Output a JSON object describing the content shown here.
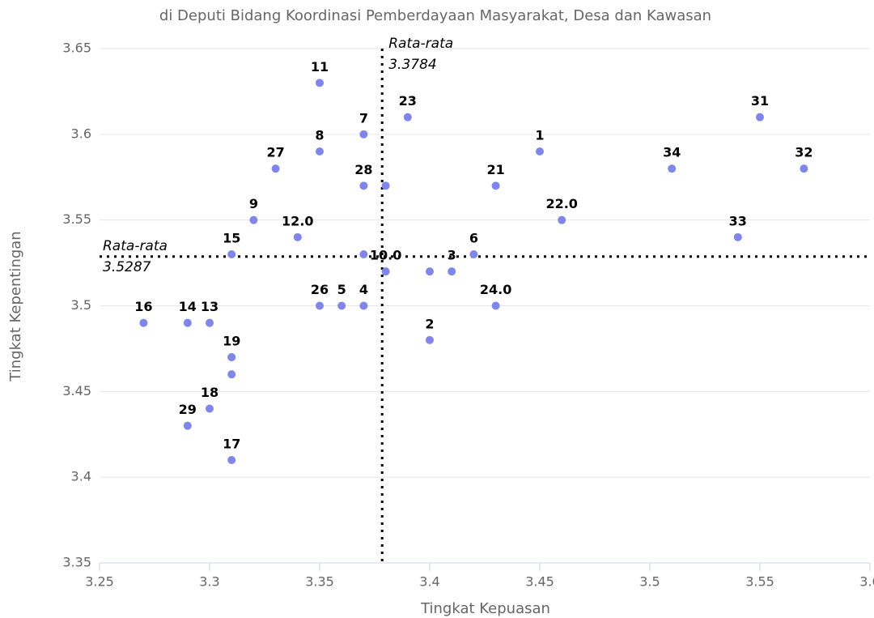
{
  "chart_data": {
    "type": "scatter",
    "title": "di Deputi Bidang Koordinasi Pemberdayaan Masyarakat, Desa dan Kawasan",
    "x_label": "Tingkat Kepuasan",
    "y_label": "Tingkat Kepentingan",
    "color": "#8085e9",
    "grid": true,
    "xlim": [
      3.25,
      3.6
    ],
    "ylim": [
      3.35,
      3.65
    ],
    "xticks": [
      3.25,
      3.3,
      3.35,
      3.4,
      3.45,
      3.5,
      3.55,
      3.6
    ],
    "yticks": [
      3.35,
      3.4,
      3.45,
      3.5,
      3.55,
      3.6,
      3.65
    ],
    "mean_x": {
      "label": "Rata-rata",
      "value": 3.3784
    },
    "mean_y": {
      "label": "Rata-rata",
      "value": 3.5287
    },
    "x": [
      3.35,
      3.37,
      3.39,
      3.35,
      3.33,
      3.37,
      3.38,
      3.45,
      3.43,
      3.46,
      3.51,
      3.55,
      3.57,
      3.54,
      3.32,
      3.34,
      3.31,
      3.37,
      3.38,
      3.41,
      3.4,
      3.42,
      3.43,
      3.4,
      3.35,
      3.36,
      3.37,
      3.27,
      3.29,
      3.3,
      3.31,
      3.31,
      3.31,
      3.3,
      3.29,
      3.31
    ],
    "values": [
      3.63,
      3.6,
      3.61,
      3.59,
      3.58,
      3.57,
      3.57,
      3.59,
      3.57,
      3.55,
      3.58,
      3.61,
      3.58,
      3.54,
      3.55,
      3.54,
      3.53,
      3.53,
      3.52,
      3.52,
      3.52,
      3.53,
      3.5,
      3.48,
      3.5,
      3.5,
      3.5,
      3.49,
      3.49,
      3.49,
      3.47,
      3.47,
      3.46,
      3.44,
      3.43,
      3.41
    ],
    "point_labels": [
      "11",
      "7",
      "23",
      "8",
      "27",
      "28",
      null,
      "1",
      "21",
      "22.0",
      "34",
      "31",
      "32",
      "33",
      "9",
      "12.0",
      "15",
      null,
      "10.0",
      "3",
      null,
      "6",
      "24.0",
      "2",
      "26",
      "5",
      "4",
      "16",
      "14",
      "13",
      "19",
      null,
      null,
      "18",
      "29",
      "17"
    ]
  }
}
